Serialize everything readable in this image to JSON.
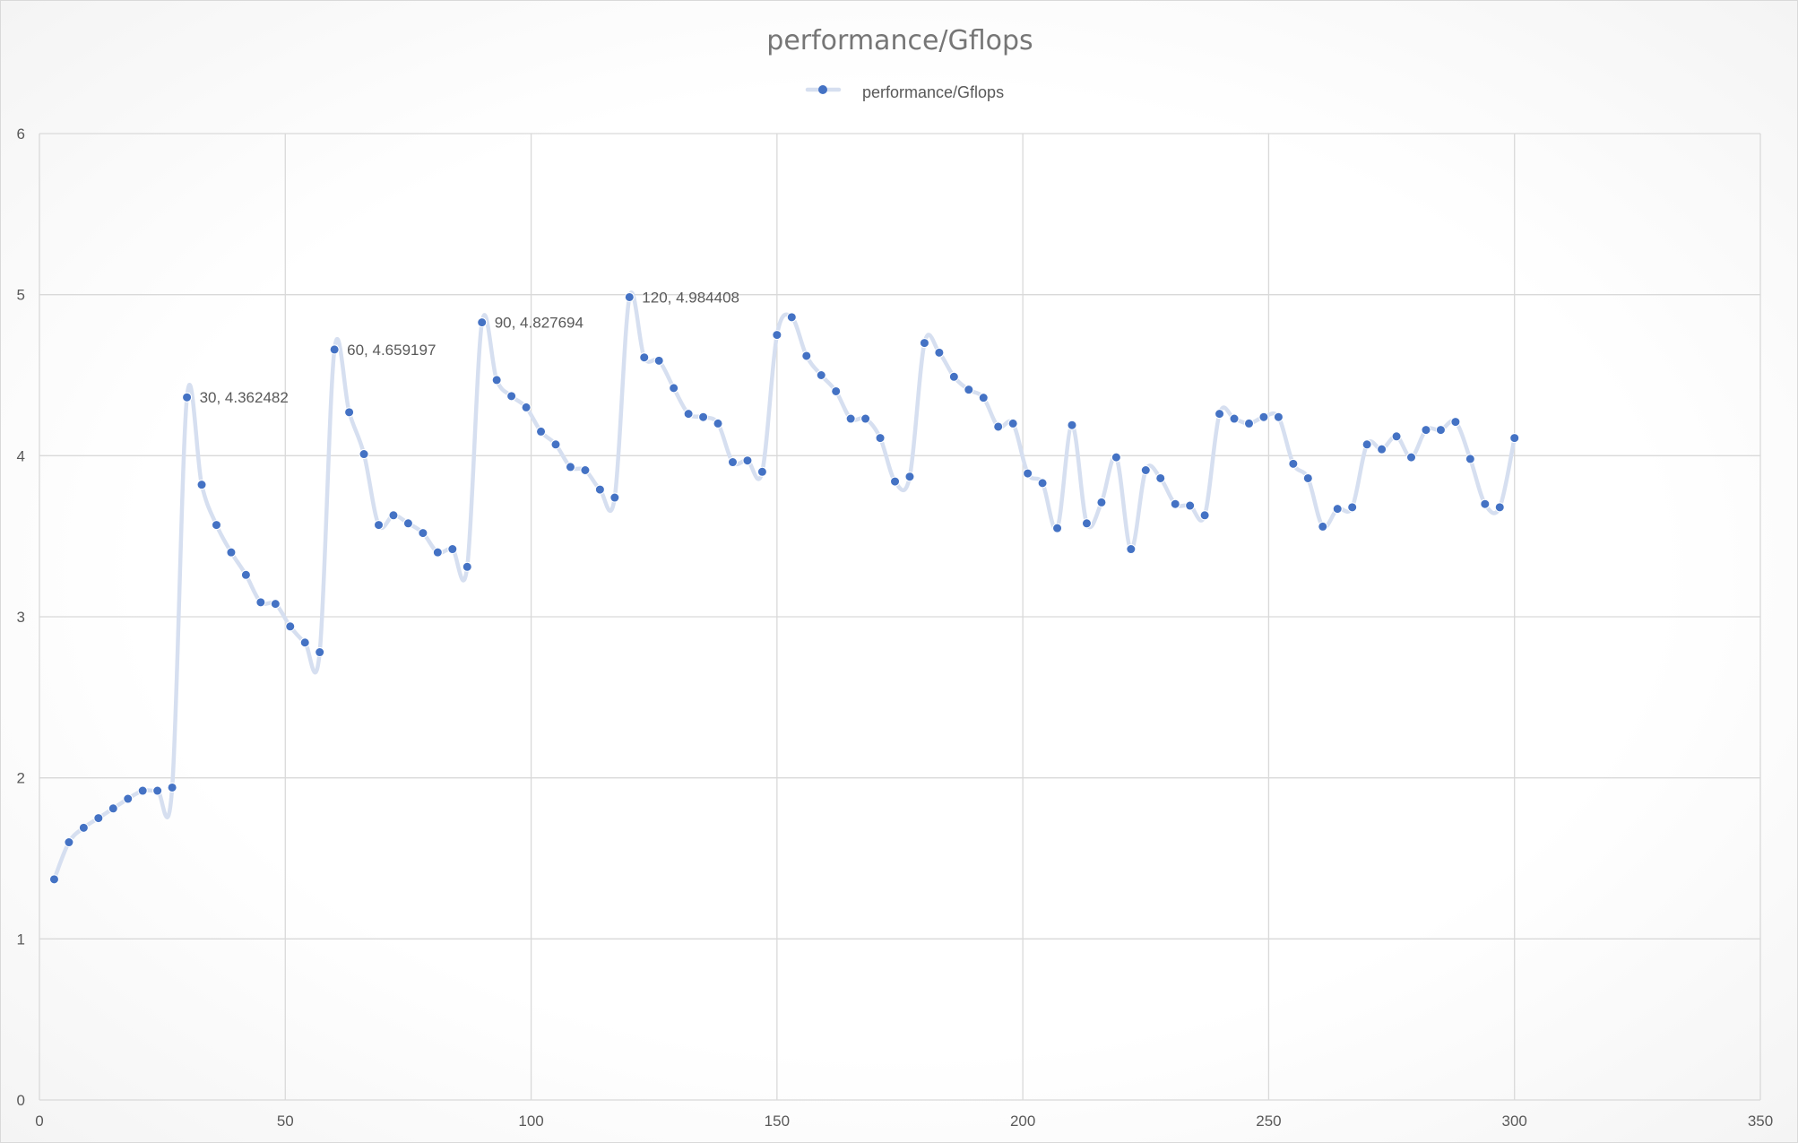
{
  "chart_data": {
    "type": "line",
    "smooth": true,
    "markers": true,
    "title": "performance/Gflops",
    "legend": {
      "position": "top",
      "entries": [
        "performance/Gflops"
      ]
    },
    "grid": true,
    "xlim": [
      0,
      350
    ],
    "ylim": [
      0,
      6
    ],
    "x_ticks": [
      0,
      50,
      100,
      150,
      200,
      250,
      300,
      350
    ],
    "y_ticks": [
      0,
      1,
      2,
      3,
      4,
      5,
      6
    ],
    "colors": {
      "marker": "#4472c4",
      "line": "#d6dff0",
      "grid": "#d9d9d9",
      "text": "#595959"
    },
    "series": [
      {
        "name": "performance/Gflops",
        "x": [
          3,
          6,
          9,
          12,
          15,
          18,
          21,
          24,
          27,
          30,
          33,
          36,
          39,
          42,
          45,
          48,
          51,
          54,
          57,
          60,
          63,
          66,
          69,
          72,
          75,
          78,
          81,
          84,
          87,
          90,
          93,
          96,
          99,
          102,
          105,
          108,
          111,
          114,
          117,
          120,
          123,
          126,
          129,
          132,
          135,
          138,
          141,
          144,
          147,
          150,
          153,
          156,
          159,
          162,
          165,
          168,
          171,
          174,
          177,
          180,
          183,
          186,
          189,
          192,
          195,
          198,
          201,
          204,
          207,
          210,
          213,
          216,
          219,
          222,
          225,
          228,
          231,
          234,
          237,
          240,
          243,
          246,
          249,
          252,
          255,
          258,
          261,
          264,
          267,
          270,
          273,
          276,
          279,
          282,
          285,
          288,
          291,
          294,
          297,
          300
        ],
        "y": [
          1.37,
          1.6,
          1.69,
          1.75,
          1.81,
          1.87,
          1.92,
          1.92,
          1.94,
          4.362482,
          3.82,
          3.57,
          3.4,
          3.26,
          3.09,
          3.08,
          2.94,
          2.84,
          2.78,
          4.659197,
          4.27,
          4.01,
          3.57,
          3.63,
          3.58,
          3.52,
          3.4,
          3.42,
          3.31,
          4.827694,
          4.47,
          4.37,
          4.3,
          4.15,
          4.07,
          3.93,
          3.91,
          3.79,
          3.74,
          4.984408,
          4.61,
          4.59,
          4.42,
          4.26,
          4.24,
          4.2,
          3.96,
          3.97,
          3.9,
          4.75,
          4.86,
          4.62,
          4.5,
          4.4,
          4.23,
          4.23,
          4.11,
          3.84,
          3.87,
          4.7,
          4.64,
          4.49,
          4.41,
          4.36,
          4.18,
          4.2,
          3.89,
          3.83,
          3.55,
          4.19,
          3.58,
          3.71,
          3.99,
          3.42,
          3.91,
          3.86,
          3.7,
          3.69,
          3.63,
          4.26,
          4.23,
          4.2,
          4.24,
          4.24,
          3.95,
          3.86,
          3.56,
          3.67,
          3.68,
          4.07,
          4.04,
          4.12,
          3.99,
          4.16,
          4.16,
          4.21,
          3.98,
          3.7,
          3.68,
          4.11
        ]
      }
    ],
    "data_labels": [
      {
        "text": "30, 4.362482",
        "x": 30,
        "y": 4.362482
      },
      {
        "text": "60, 4.659197",
        "x": 60,
        "y": 4.659197
      },
      {
        "text": "90, 4.827694",
        "x": 90,
        "y": 4.827694
      },
      {
        "text": "120, 4.984408",
        "x": 120,
        "y": 4.984408
      }
    ]
  }
}
